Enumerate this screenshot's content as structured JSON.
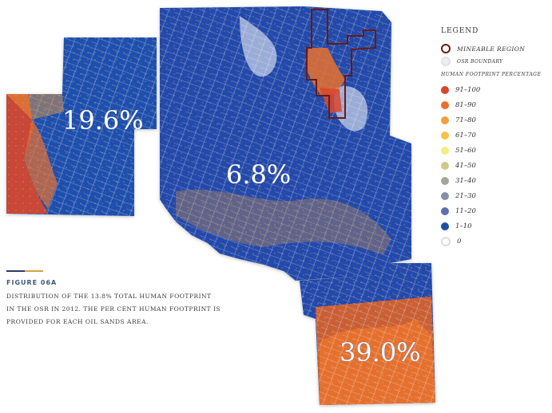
{
  "map": {
    "area_labels": {
      "west": "19.6%",
      "central": "6.8%",
      "south": "39.0%"
    },
    "area_fill_colors": {
      "west_base": "#1f4fae",
      "central_base": "#2149ab",
      "south_base": "#d8612a"
    }
  },
  "legend": {
    "title": "LEGEND",
    "mineable_region": "MINEABLE REGION",
    "osr_boundary": "OSR BOUNDARY",
    "subtitle": "HUMAN FOOTPRINT PERCENTAGE",
    "ranges": [
      {
        "label": "91–100",
        "color": "#d9462b"
      },
      {
        "label": "81–90",
        "color": "#e8712d"
      },
      {
        "label": "71–80",
        "color": "#f2a03a"
      },
      {
        "label": "61–70",
        "color": "#f6c24a"
      },
      {
        "label": "51–60",
        "color": "#f7ec7e"
      },
      {
        "label": "41–50",
        "color": "#cfc98a"
      },
      {
        "label": "31–40",
        "color": "#a3a795"
      },
      {
        "label": "21–30",
        "color": "#8590a8"
      },
      {
        "label": "11–20",
        "color": "#5c6fae"
      },
      {
        "label": "1–10",
        "color": "#1f4fa5"
      },
      {
        "label": "0",
        "color": "#ffffff"
      }
    ],
    "mineable_color": "#6b1a10"
  },
  "caption": {
    "figure_label": "FIGURE 06A",
    "text": "DISTRIBUTION OF THE 13.8% TOTAL HUMAN FOOTPRINT IN THE OSR IN 2012. THE PER CENT HUMAN FOOTPRINT IS PROVIDED FOR EACH OIL SANDS AREA."
  }
}
